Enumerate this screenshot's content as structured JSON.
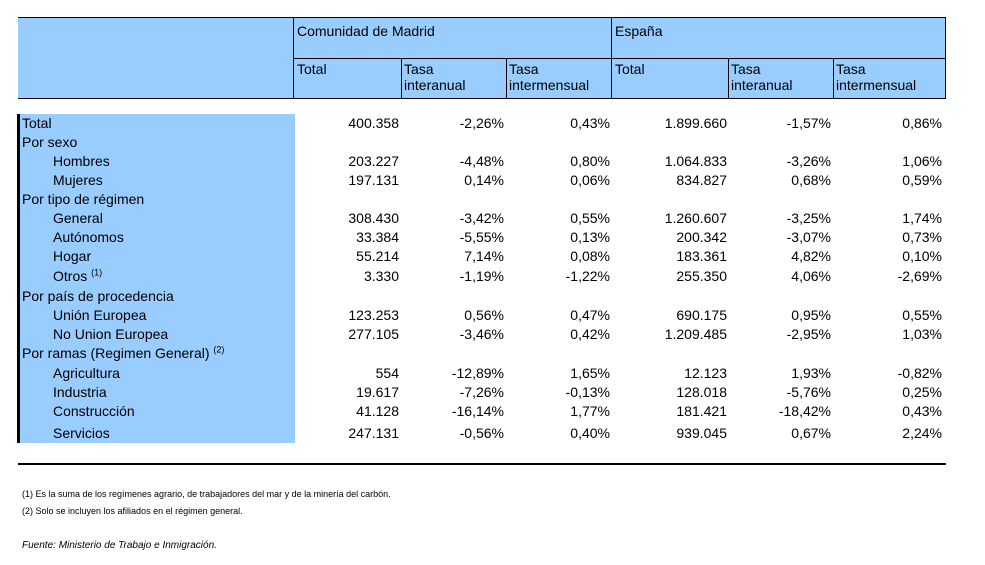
{
  "header": {
    "group_madrid": "Comunidad de Madrid",
    "group_espana": "España",
    "madrid_total": "Total",
    "madrid_interanual_1": "Tasa",
    "madrid_interanual_2": "interanual",
    "madrid_intermensual_1": "Tasa",
    "madrid_intermensual_2": "intermensual",
    "espana_total": "Total",
    "espana_interanual_1": "Tasa",
    "espana_interanual_2": "interanual",
    "espana_intermensual_1": "Tasa",
    "espana_intermensual_2": "intermensual"
  },
  "rows": [
    {
      "label": "Total",
      "values": [
        "400.358",
        "-2,26%",
        "0,43%",
        "1.899.660",
        "-1,57%",
        "0,86%"
      ]
    },
    {
      "label": "Por sexo",
      "values": [
        "",
        "",
        "",
        "",
        "",
        ""
      ]
    },
    {
      "label": "Hombres",
      "values": [
        "203.227",
        "-4,48%",
        "0,80%",
        "1.064.833",
        "-3,26%",
        "1,06%"
      ]
    },
    {
      "label": "Mujeres",
      "values": [
        "197.131",
        "0,14%",
        "0,06%",
        "834.827",
        "0,68%",
        "0,59%"
      ]
    },
    {
      "label": "Por tipo de régimen",
      "values": [
        "",
        "",
        "",
        "",
        "",
        ""
      ]
    },
    {
      "label": "General",
      "values": [
        "308.430",
        "-3,42%",
        "0,55%",
        "1.260.607",
        "-3,25%",
        "1,74%"
      ]
    },
    {
      "label": "Autónomos",
      "values": [
        "33.384",
        "-5,55%",
        "0,13%",
        "200.342",
        "-3,07%",
        "0,73%"
      ]
    },
    {
      "label": "Hogar",
      "values": [
        "55.214",
        "7,14%",
        "0,08%",
        "183.361",
        "4,82%",
        "0,10%"
      ]
    },
    {
      "label": "Otros",
      "sup": "(1)",
      "values": [
        "3.330",
        "-1,19%",
        "-1,22%",
        "255.350",
        "4,06%",
        "-2,69%"
      ]
    },
    {
      "label": "Por país de procedencia",
      "values": [
        "",
        "",
        "",
        "",
        "",
        ""
      ]
    },
    {
      "label": "Unión Europea",
      "values": [
        "123.253",
        "0,56%",
        "0,47%",
        "690.175",
        "0,95%",
        "0,55%"
      ]
    },
    {
      "label": "No Union Europea",
      "values": [
        "277.105",
        "-3,46%",
        "0,42%",
        "1.209.485",
        "-2,95%",
        "1,03%"
      ]
    },
    {
      "label": "Por ramas (Regimen General)",
      "sup": "(2)",
      "values": [
        "",
        "",
        "",
        "",
        "",
        ""
      ]
    },
    {
      "label": "Agricultura",
      "values": [
        "554",
        "-12,89%",
        "1,65%",
        "12.123",
        "1,93%",
        "-0,82%"
      ]
    },
    {
      "label": "Industria",
      "values": [
        "19.617",
        "-7,26%",
        "-0,13%",
        "128.018",
        "-5,76%",
        "0,25%"
      ]
    },
    {
      "label": "Construcción",
      "values": [
        "41.128",
        "-16,14%",
        "1,77%",
        "181.421",
        "-18,42%",
        "0,43%"
      ]
    },
    {
      "label": "Servicios",
      "values": [
        "247.131",
        "-0,56%",
        "0,40%",
        "939.045",
        "0,67%",
        "2,24%"
      ]
    }
  ],
  "notes": {
    "note1": "(1) Es la suma de los regímenes  agrario, de trabajadores del mar y de la minería del carbón.",
    "note2": "(2) Solo se incluyen los afiliados en el régimen general.",
    "source": "Fuente: Ministerio de Trabajo e Inmigración."
  },
  "colors": {
    "header_fill": "#99ccff",
    "label_fill": "#99ccff"
  }
}
